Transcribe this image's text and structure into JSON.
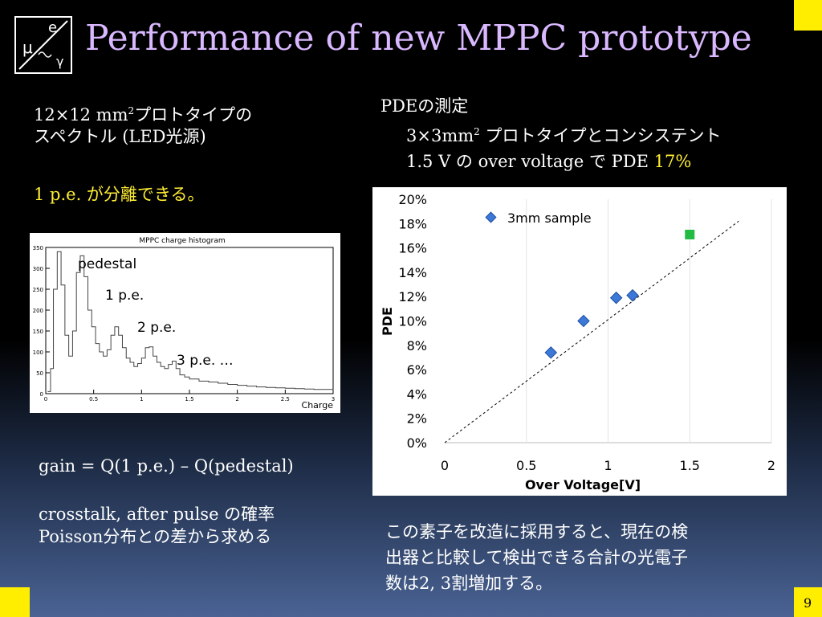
{
  "slide": {
    "title": "Performance of new MPPC prototype",
    "page_number": "9",
    "accent": "#ffee00",
    "title_color": "#d9b8ff"
  },
  "logo": {
    "mu": "μ",
    "e": "e",
    "gamma": "γ"
  },
  "left": {
    "spectrum_heading_1": "12×12 mm",
    "spectrum_heading_sup": "2",
    "spectrum_heading_1b": "プロトタイプの",
    "spectrum_heading_2": "スペクトル (LED光源)",
    "highlight": "1 p.e. が分離できる。",
    "gain_formula": "gain = Q(1 p.e.) – Q(pedestal)",
    "crosstalk_1": "crosstalk, after pulse の確率",
    "crosstalk_2": "Poisson分布との差から求める"
  },
  "histogram": {
    "title": "MPPC charge histogram",
    "xlabel": "Charge",
    "x_ticks": [
      "0",
      "0.5",
      "1",
      "1.5",
      "2",
      "2.5",
      "3"
    ],
    "y_ticks": [
      "0",
      "50",
      "100",
      "150",
      "200",
      "250",
      "300",
      "350"
    ],
    "labels": {
      "pedestal": "pedestal",
      "pe1": "1 p.e.",
      "pe2": "2 p.e.",
      "pe3": "3 p.e.  …"
    }
  },
  "right": {
    "pde_heading": "PDEの測定",
    "pde_line1a": "3×3mm",
    "pde_line1_sup": "2",
    "pde_line1b": " プロトタイプとコンシステント",
    "pde_line2a": "1.5 V の over voltage で PDE ",
    "pde_value": "17%",
    "conclusion_1": "この素子を改造に採用すると、現在の検",
    "conclusion_2": "出器と比較して検出できる合計の光電子",
    "conclusion_3": "数は2, 3割増加する。"
  },
  "chart_data": [
    {
      "type": "scatter",
      "xlabel": "Over Voltage[V]",
      "ylabel": "PDE",
      "xlim": [
        0,
        2
      ],
      "ylim": [
        0,
        20
      ],
      "x_ticks": [
        "0",
        "0.5",
        "1",
        "1.5",
        "2"
      ],
      "y_ticks": [
        "0%",
        "2%",
        "4%",
        "6%",
        "8%",
        "10%",
        "12%",
        "14%",
        "16%",
        "18%",
        "20%"
      ],
      "legend": "top-left",
      "grid": "vertical",
      "series": [
        {
          "name": "3mm sample",
          "marker": "diamond",
          "color": "#3b78d8",
          "x": [
            0.65,
            0.85,
            1.05,
            1.15
          ],
          "y": [
            7.4,
            10.0,
            11.9,
            12.1
          ]
        },
        {
          "marker": "square",
          "color": "#22bb44",
          "x": [
            1.5
          ],
          "y": [
            17.1
          ]
        }
      ],
      "fit_line": {
        "style": "dashed",
        "x": [
          0,
          1.8
        ],
        "y": [
          0,
          18.2
        ]
      }
    },
    {
      "type": "line",
      "title": "MPPC charge histogram",
      "xlabel": "Charge",
      "xlim": [
        0,
        3
      ],
      "ylim": [
        0,
        350
      ],
      "x": [
        0.02,
        0.05,
        0.08,
        0.12,
        0.16,
        0.2,
        0.24,
        0.28,
        0.32,
        0.36,
        0.4,
        0.44,
        0.48,
        0.52,
        0.56,
        0.6,
        0.64,
        0.68,
        0.72,
        0.76,
        0.8,
        0.84,
        0.88,
        0.92,
        0.96,
        1.0,
        1.04,
        1.08,
        1.12,
        1.16,
        1.2,
        1.24,
        1.28,
        1.32,
        1.36,
        1.4,
        1.45,
        1.5,
        1.6,
        1.7,
        1.8,
        1.9,
        2.0,
        2.1,
        2.2,
        2.3,
        2.4,
        2.5,
        2.6,
        2.7,
        2.8,
        2.9,
        3.0
      ],
      "values": [
        5,
        60,
        250,
        340,
        260,
        140,
        90,
        150,
        290,
        330,
        280,
        200,
        160,
        120,
        100,
        90,
        105,
        140,
        160,
        140,
        110,
        85,
        75,
        65,
        72,
        85,
        110,
        112,
        90,
        75,
        65,
        60,
        70,
        78,
        60,
        45,
        40,
        35,
        30,
        28,
        25,
        22,
        20,
        18,
        16,
        15,
        14,
        13,
        12,
        11,
        10,
        10,
        9
      ]
    }
  ]
}
